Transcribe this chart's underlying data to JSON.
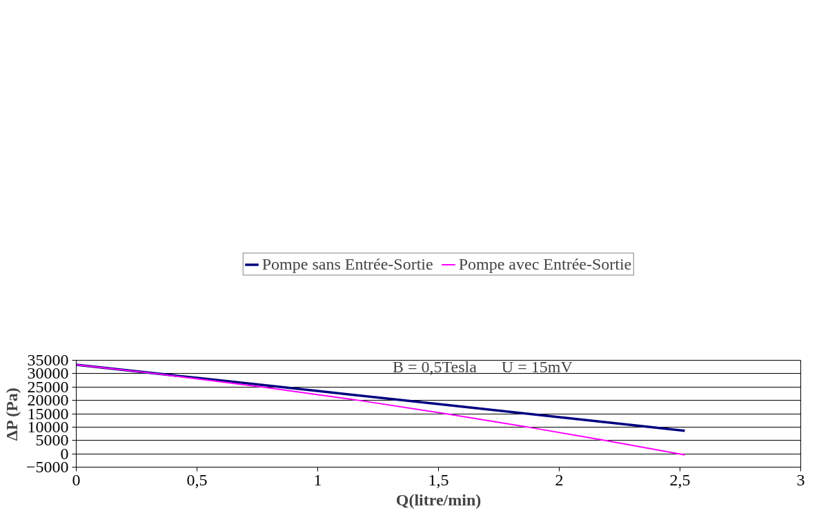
{
  "chart_data": {
    "type": "line",
    "xlabel": "Q(litre/min)",
    "ylabel": "ΔP (Pa)",
    "annotations": [
      "B = 0,5Tesla      U = 15mV"
    ],
    "xlim": [
      0,
      3
    ],
    "ylim": [
      -5000,
      35000
    ],
    "xticks": [
      0,
      {
        "value": 0.5,
        "label": "0,5"
      },
      1,
      {
        "value": 1.5,
        "label": "1,5"
      },
      2,
      {
        "value": 2.5,
        "label": "2,5"
      },
      3
    ],
    "yticks": [
      -5000,
      0,
      5000,
      10000,
      15000,
      20000,
      25000,
      30000,
      35000
    ],
    "grid": "y",
    "legend": "top",
    "marker": "none",
    "line_style": "solid",
    "series": [
      {
        "name": "Pompe sans Entrée-Sortie",
        "color": "#000080",
        "x": [
          0,
          0.5,
          1,
          1.5,
          2,
          2.52
        ],
        "values": [
          33300,
          28400,
          23500,
          18600,
          13700,
          8600
        ]
      },
      {
        "name": "Pompe avec Entrée-Sortie",
        "color": "#ff00ff",
        "x": [
          0,
          0.33,
          0.77,
          1.17,
          1.53,
          1.87,
          2.19,
          2.52
        ],
        "values": [
          33300,
          30000,
          25000,
          20000,
          15000,
          10000,
          5000,
          -400
        ]
      }
    ]
  }
}
